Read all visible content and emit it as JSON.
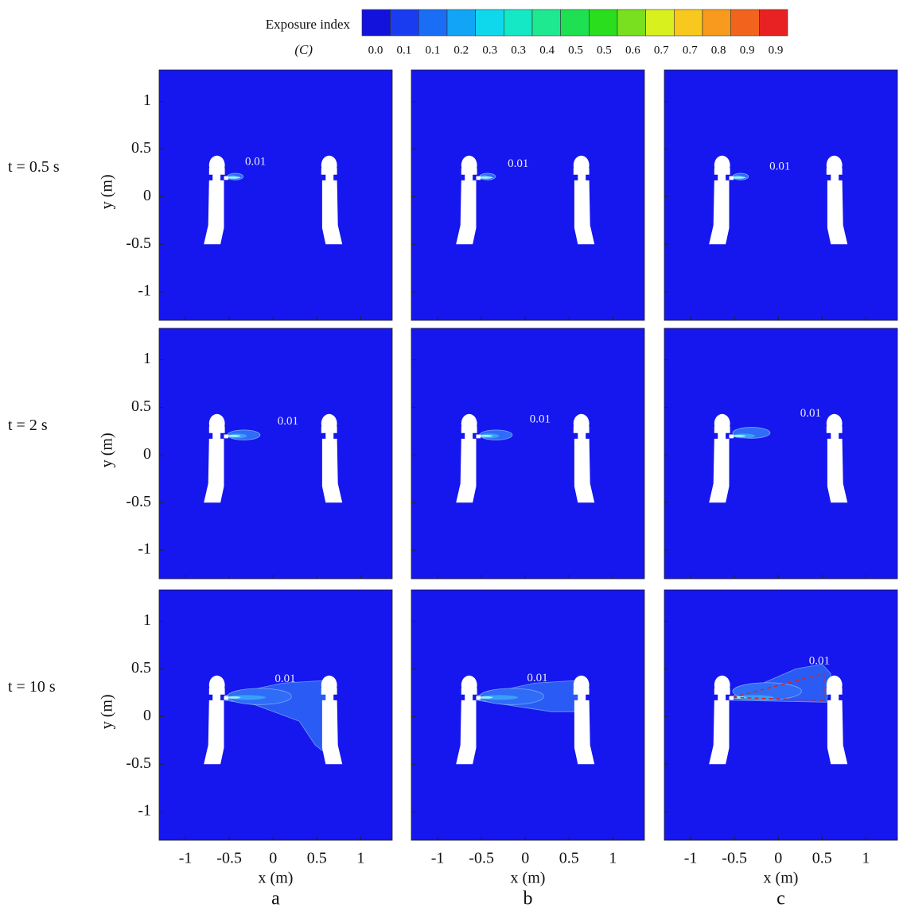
{
  "colorbar": {
    "title": "Exposure index",
    "symbol": "(C)",
    "labels": [
      "0.0",
      "0.1",
      "0.1",
      "0.2",
      "0.3",
      "0.3",
      "0.4",
      "0.5",
      "0.5",
      "0.6",
      "0.7",
      "0.7",
      "0.8",
      "0.9",
      "0.9"
    ],
    "colors": [
      "#1212dc",
      "#1a3cf0",
      "#1a6ef5",
      "#12a4f5",
      "#10d8ec",
      "#14e8c4",
      "#1ee890",
      "#1ee050",
      "#2ade1e",
      "#78e01e",
      "#d8f01e",
      "#f8c81e",
      "#f89a1e",
      "#f2641e",
      "#e82222"
    ]
  },
  "row_labels": [
    "t = 0.5 s",
    "t = 2 s",
    "t = 10 s"
  ],
  "column_labels": [
    "a",
    "b",
    "c"
  ],
  "y_axis": {
    "label": "y (m)",
    "ylim": [
      -1.3,
      1.33
    ],
    "yticks": [
      1,
      0.5,
      0,
      -0.5,
      -1
    ]
  },
  "x_axis": {
    "label": "x (m)",
    "xlim": [
      -1.3,
      1.36
    ],
    "xticks": [
      -1,
      -0.5,
      0,
      0.5,
      1
    ]
  },
  "contour_label": "0.01"
}
